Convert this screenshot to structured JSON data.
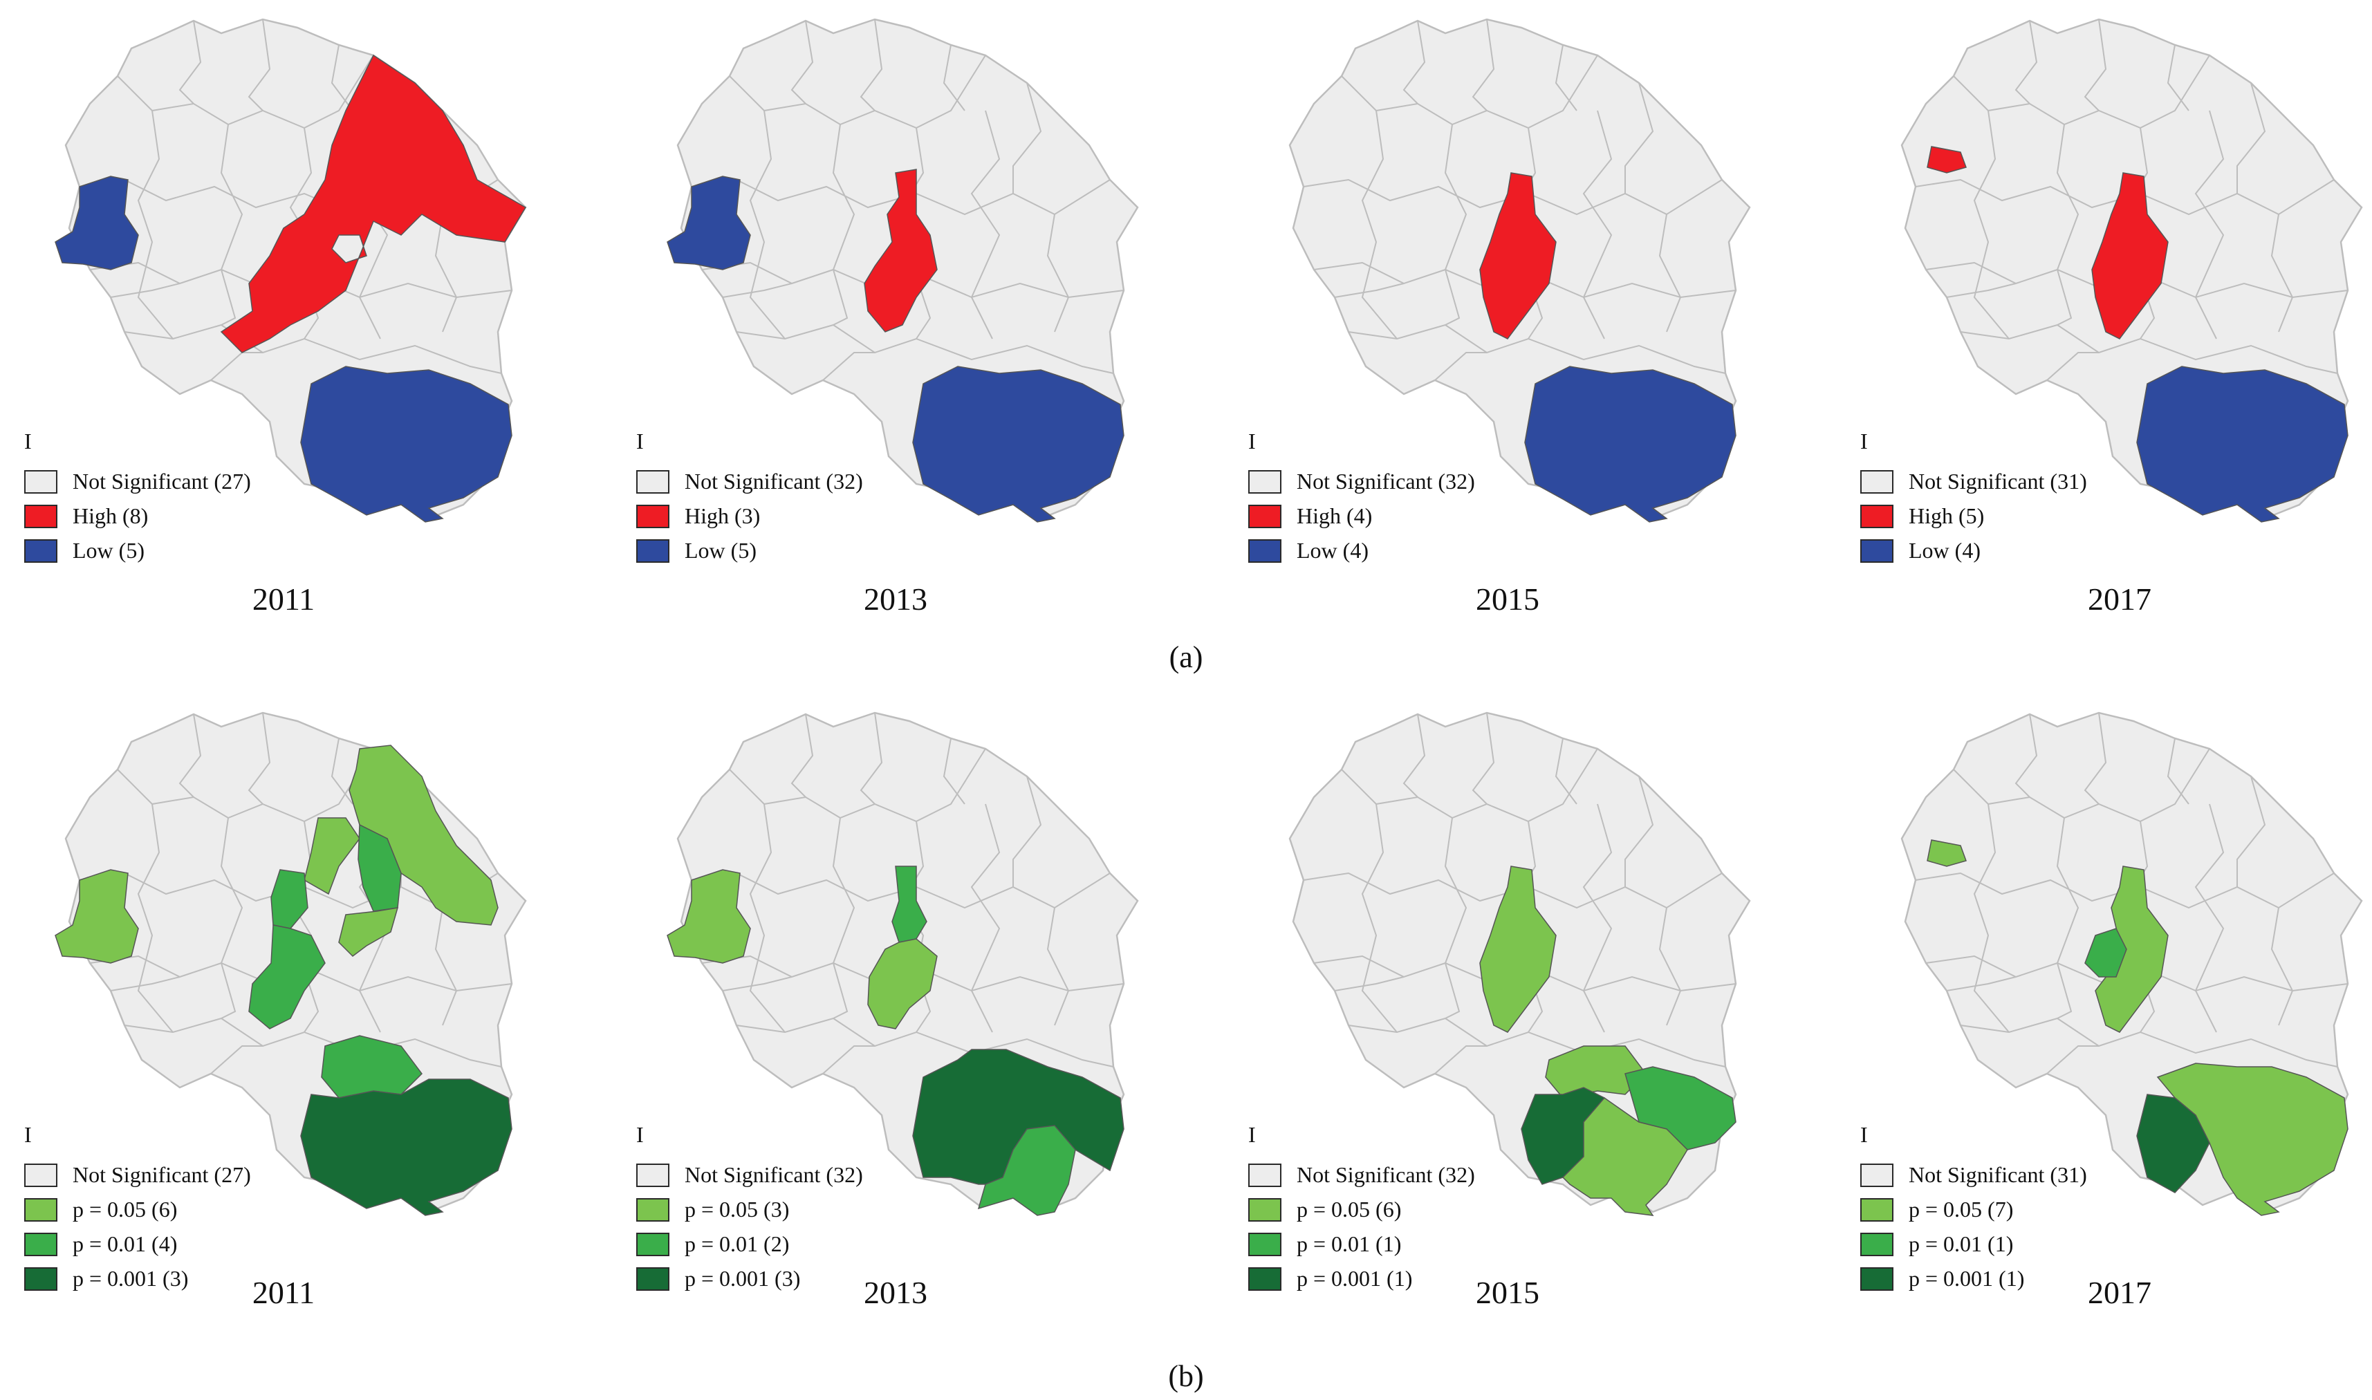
{
  "colors": {
    "not_significant": "#ededed",
    "boundary": "#bdbdbd",
    "high": "#ee1c24",
    "low": "#2e4a9e",
    "p05": "#7cc44e",
    "p01": "#3aae4a",
    "p001": "#176c36"
  },
  "rows": [
    {
      "label": "(a)",
      "kind": "cluster",
      "panels": [
        {
          "year": "2011",
          "legend_title": "I",
          "highlight": [
            "high-2011",
            "low-2011"
          ],
          "legend": [
            {
              "key": "not_significant",
              "label": "Not Significant (27)"
            },
            {
              "key": "high",
              "label": "High (8)"
            },
            {
              "key": "low",
              "label": "Low (5)"
            }
          ]
        },
        {
          "year": "2013",
          "legend_title": "I",
          "highlight": [
            "high-2013",
            "low-2013"
          ],
          "legend": [
            {
              "key": "not_significant",
              "label": "Not Significant (32)"
            },
            {
              "key": "high",
              "label": "High (3)"
            },
            {
              "key": "low",
              "label": "Low (5)"
            }
          ]
        },
        {
          "year": "2015",
          "legend_title": "I",
          "highlight": [
            "high-2015",
            "low-2015"
          ],
          "legend": [
            {
              "key": "not_significant",
              "label": "Not Significant (32)"
            },
            {
              "key": "high",
              "label": "High (4)"
            },
            {
              "key": "low",
              "label": "Low (4)"
            }
          ]
        },
        {
          "year": "2017",
          "legend_title": "I",
          "highlight": [
            "high-2017",
            "low-2017"
          ],
          "legend": [
            {
              "key": "not_significant",
              "label": "Not Significant (31)"
            },
            {
              "key": "high",
              "label": "High (5)"
            },
            {
              "key": "low",
              "label": "Low (4)"
            }
          ]
        }
      ]
    },
    {
      "label": "(b)",
      "kind": "significance",
      "panels": [
        {
          "year": "2011",
          "legend_title": "I",
          "highlight": [
            "sig-2011"
          ],
          "legend": [
            {
              "key": "not_significant",
              "label": "Not Significant (27)"
            },
            {
              "key": "p05",
              "label": "p = 0.05 (6)"
            },
            {
              "key": "p01",
              "label": "p = 0.01 (4)"
            },
            {
              "key": "p001",
              "label": "p = 0.001 (3)"
            }
          ]
        },
        {
          "year": "2013",
          "legend_title": "I",
          "highlight": [
            "sig-2013"
          ],
          "legend": [
            {
              "key": "not_significant",
              "label": "Not Significant (32)"
            },
            {
              "key": "p05",
              "label": "p = 0.05 (3)"
            },
            {
              "key": "p01",
              "label": "p = 0.01 (2)"
            },
            {
              "key": "p001",
              "label": "p = 0.001 (3)"
            }
          ]
        },
        {
          "year": "2015",
          "legend_title": "I",
          "highlight": [
            "sig-2015"
          ],
          "legend": [
            {
              "key": "not_significant",
              "label": "Not Significant (32)"
            },
            {
              "key": "p05",
              "label": "p = 0.05 (6)"
            },
            {
              "key": "p01",
              "label": "p = 0.01 (1)"
            },
            {
              "key": "p001",
              "label": "p = 0.001 (1)"
            }
          ]
        },
        {
          "year": "2017",
          "legend_title": "I",
          "highlight": [
            "sig-2017"
          ],
          "legend": [
            {
              "key": "not_significant",
              "label": "Not Significant (31)"
            },
            {
              "key": "p05",
              "label": "p = 0.05 (7)"
            },
            {
              "key": "p01",
              "label": "p = 0.01 (1)"
            },
            {
              "key": "p001",
              "label": "p = 0.001 (1)"
            }
          ]
        }
      ]
    }
  ]
}
